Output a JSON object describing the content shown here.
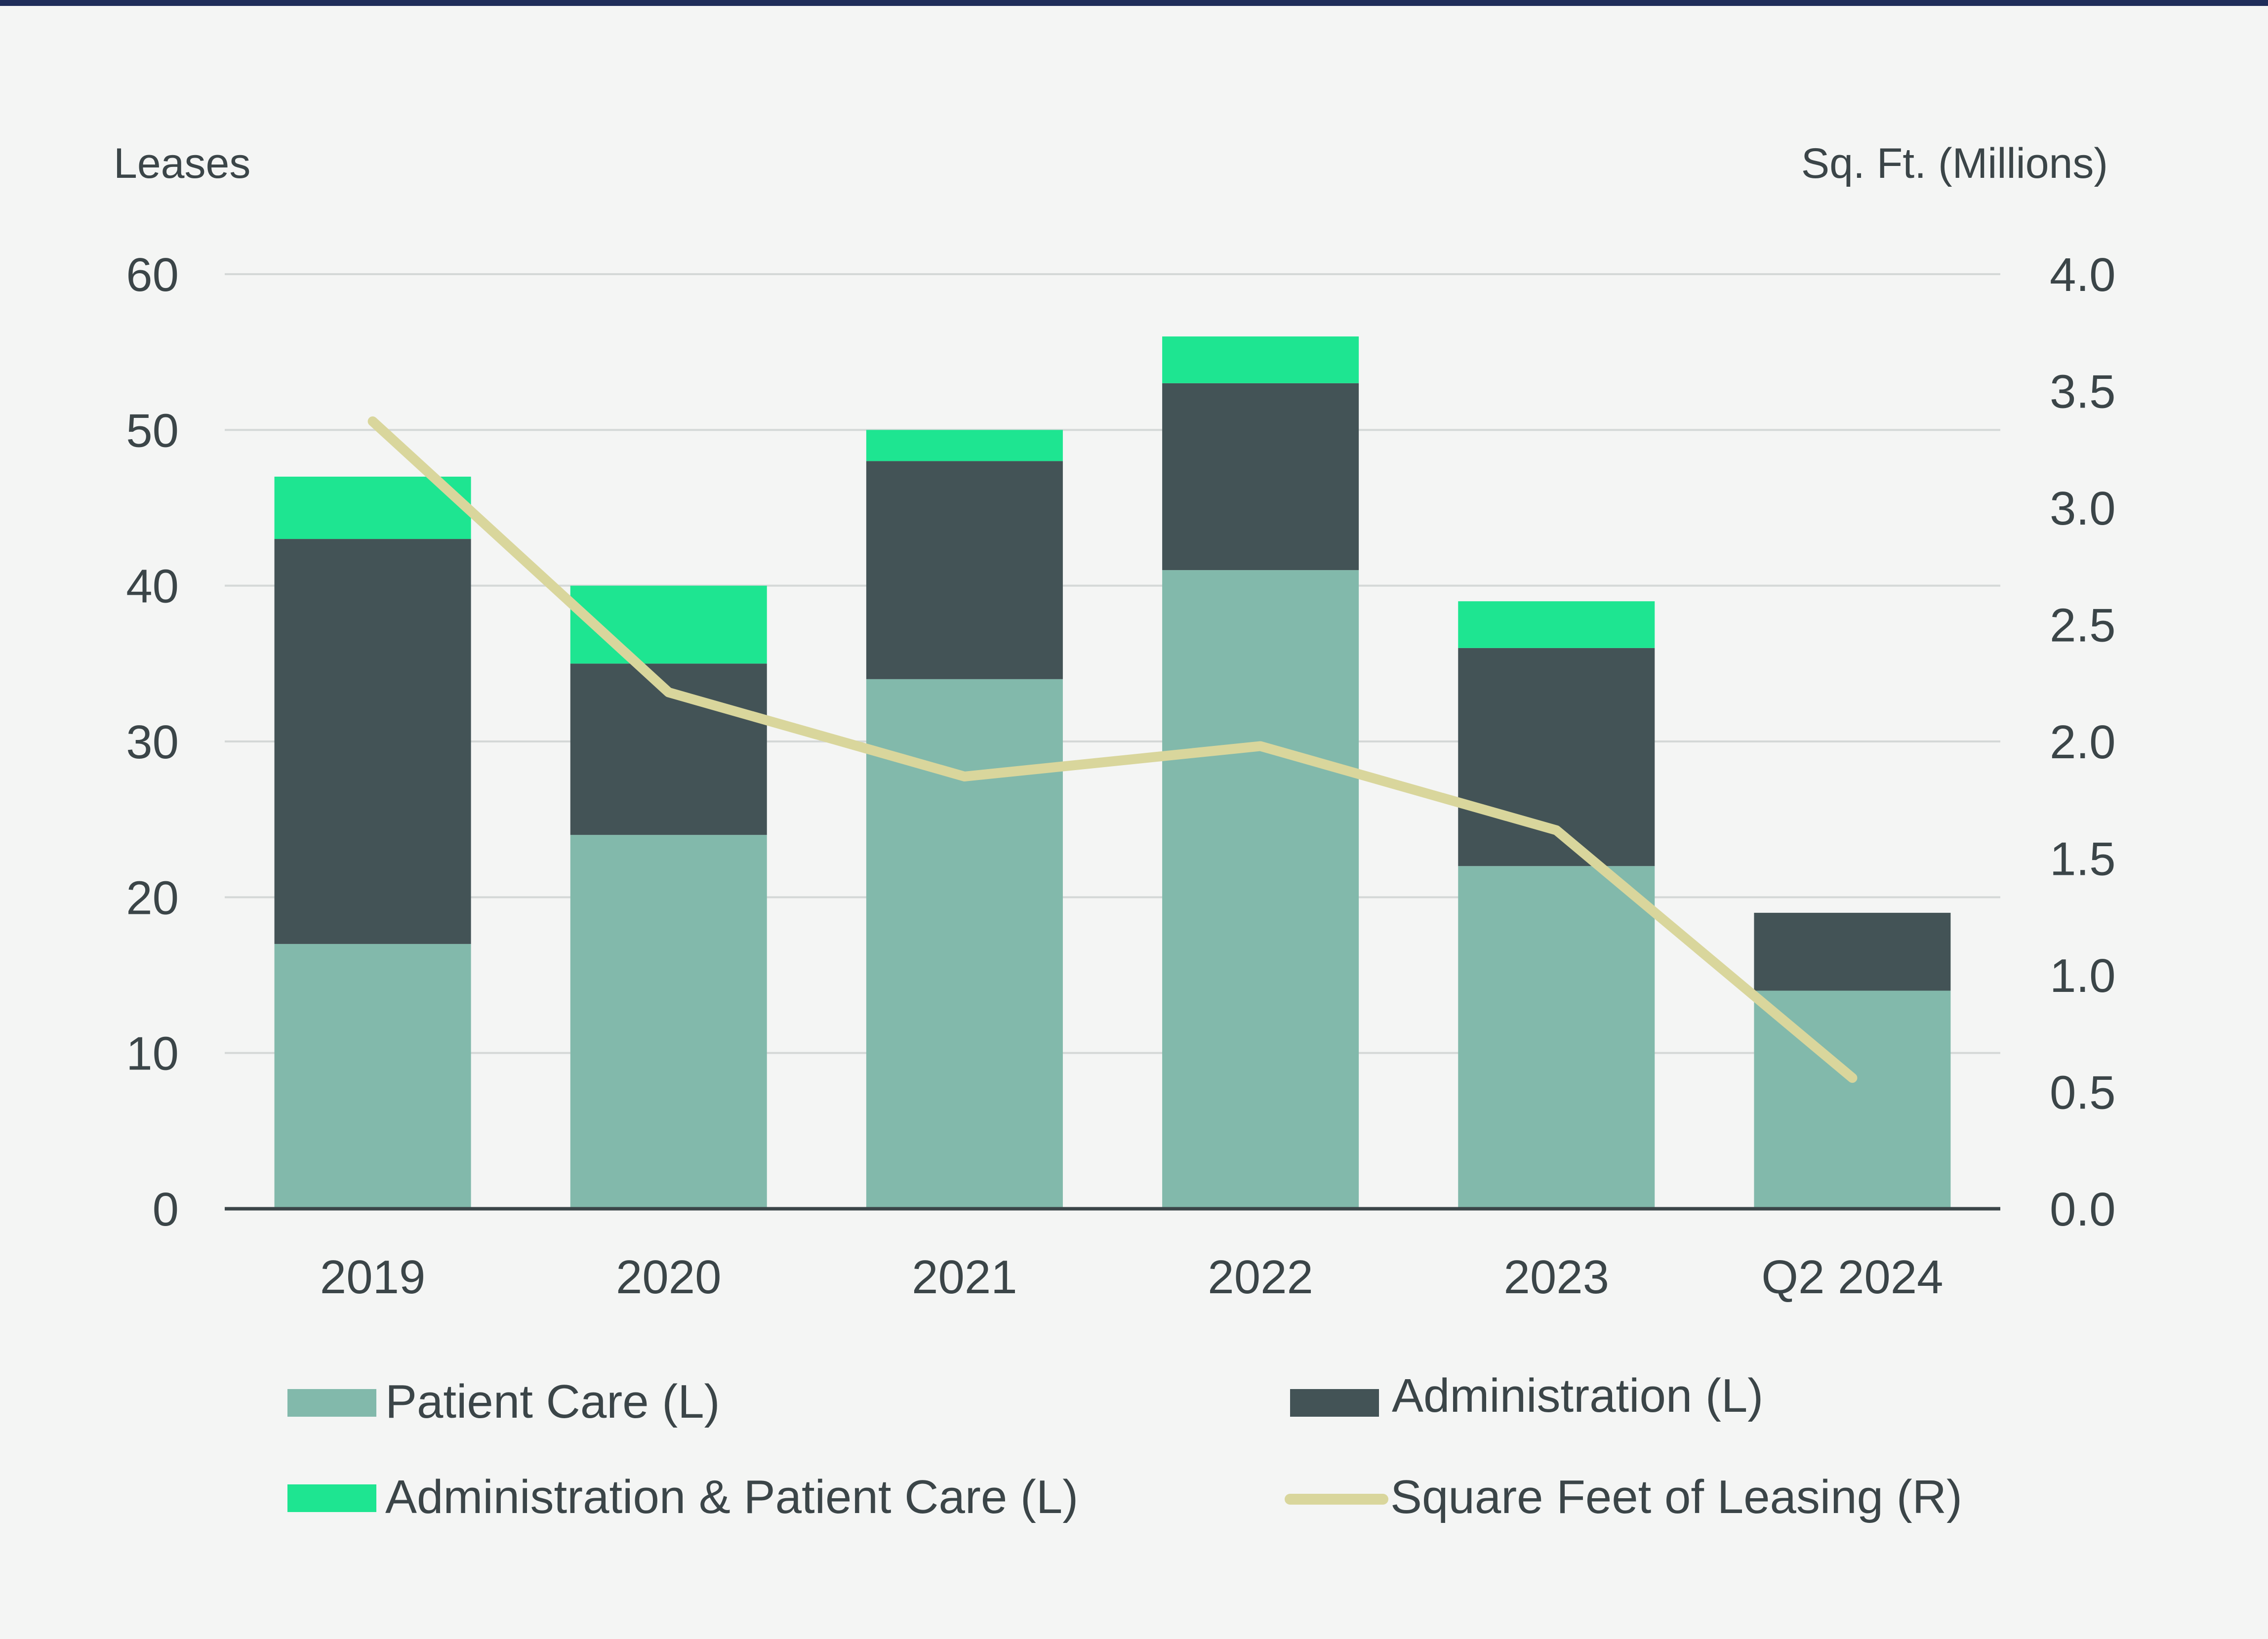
{
  "colors": {
    "background": "#f4f5f4",
    "top_bar": "#1f2d5a",
    "patient_care": "#82b9ab",
    "administration": "#435356",
    "admin_patient_care": "#1ee591",
    "square_feet_line": "#d9d69c",
    "gridline": "#d4d8d7",
    "axis": "#3b4548",
    "text": "#3b4548"
  },
  "chart_data": {
    "type": "bar",
    "stacked": true,
    "categories": [
      "2019",
      "2020",
      "2021",
      "2022",
      "2023",
      "Q2 2024"
    ],
    "series": [
      {
        "name": "Patient Care (L)",
        "axis": "left",
        "values": [
          17,
          24,
          34,
          41,
          22,
          14
        ]
      },
      {
        "name": "Administration (L)",
        "axis": "left",
        "values": [
          26,
          11,
          14,
          12,
          14,
          5
        ]
      },
      {
        "name": "Administration & Patient Care (L)",
        "axis": "left",
        "values": [
          4,
          5,
          2,
          3,
          3,
          0
        ]
      }
    ],
    "line_series": [
      {
        "name": "Square Feet of Leasing (R)",
        "axis": "right",
        "type": "line",
        "values": [
          3.37,
          2.21,
          1.85,
          1.98,
          1.62,
          0.56
        ]
      }
    ],
    "left_axis": {
      "title": "Leases",
      "min": 0,
      "max": 60,
      "ticks": [
        0,
        10,
        20,
        30,
        40,
        50,
        60
      ],
      "tick_labels": [
        "0",
        "10",
        "20",
        "30",
        "40",
        "50",
        "60"
      ]
    },
    "right_axis": {
      "title": "Sq. Ft. (Millions)",
      "min": 0,
      "max": 4,
      "ticks": [
        0,
        0.5,
        1,
        1.5,
        2,
        2.5,
        3,
        3.5,
        4
      ],
      "tick_labels": [
        "0.0",
        "0.5",
        "1.0",
        "1.5",
        "2.0",
        "2.5",
        "3.0",
        "3.5",
        "4.0"
      ]
    },
    "grid": true,
    "legend": {
      "position": "bottom",
      "entries": [
        {
          "label": "Patient Care (L)",
          "kind": "bar",
          "series": 0
        },
        {
          "label": "Administration (L)",
          "kind": "bar",
          "series": 1
        },
        {
          "label": "Administration & Patient Care (L)",
          "kind": "bar",
          "series": 2
        },
        {
          "label": "Square Feet of Leasing (R)",
          "kind": "line",
          "series": 0
        }
      ]
    }
  }
}
